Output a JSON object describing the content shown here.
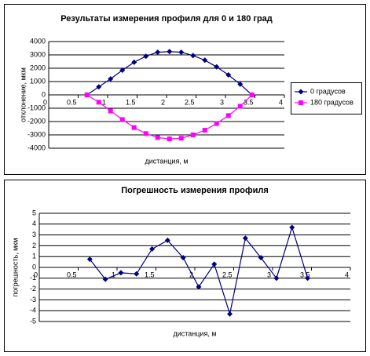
{
  "chart_data": [
    {
      "type": "line",
      "title": "Результаты измерения профиля для 0 и 180 град",
      "x_label": "дистанция, м",
      "y_label": "отклонение, мкм",
      "x": [
        0.65,
        0.85,
        1.05,
        1.25,
        1.45,
        1.65,
        1.85,
        2.05,
        2.25,
        2.45,
        2.65,
        2.85,
        3.05,
        3.25,
        3.45
      ],
      "series": [
        {
          "name": "0 градусов",
          "color": "#000080",
          "marker": "diamond",
          "values": [
            0,
            600,
            1200,
            1850,
            2450,
            2900,
            3200,
            3250,
            3200,
            2950,
            2600,
            2100,
            1500,
            800,
            0
          ]
        },
        {
          "name": "180 градусов",
          "color": "#ff00ff",
          "marker": "square",
          "values": [
            0,
            -550,
            -1200,
            -1850,
            -2450,
            -2900,
            -3200,
            -3300,
            -3250,
            -3000,
            -2650,
            -2150,
            -1550,
            -850,
            0
          ]
        }
      ],
      "xlim": [
        0,
        4
      ],
      "xticks": [
        0,
        0.5,
        1,
        1.5,
        2,
        2.5,
        3,
        3.5,
        4
      ],
      "ylim": [
        -4000,
        4000
      ],
      "yticks": [
        -4000,
        -3000,
        -2000,
        -1000,
        0,
        1000,
        2000,
        3000,
        4000
      ],
      "grid": true,
      "legend": "right"
    },
    {
      "type": "line",
      "title": "Погрешность измерения профиля",
      "x_label": "дистанция, м",
      "y_label": "погрешность, мкм",
      "x": [
        0.65,
        0.85,
        1.05,
        1.25,
        1.45,
        1.65,
        1.85,
        2.05,
        2.25,
        2.45,
        2.65,
        2.85,
        3.05,
        3.25,
        3.45
      ],
      "series": [
        {
          "name": null,
          "color": "#000080",
          "marker": "diamond",
          "values": [
            0.75,
            -1.1,
            -0.5,
            -0.6,
            1.7,
            2.5,
            0.9,
            -1.8,
            0.3,
            -4.3,
            2.7,
            0.9,
            -1,
            3.7,
            -1
          ]
        }
      ],
      "xlim": [
        0,
        4
      ],
      "xticks": [
        0,
        0.5,
        1,
        1.5,
        2,
        2.5,
        3,
        3.5,
        4
      ],
      "ylim": [
        -5,
        5
      ],
      "yticks": [
        -5,
        -4,
        -3,
        -2,
        -1,
        0,
        1,
        2,
        3,
        4,
        5
      ],
      "grid": true
    }
  ]
}
